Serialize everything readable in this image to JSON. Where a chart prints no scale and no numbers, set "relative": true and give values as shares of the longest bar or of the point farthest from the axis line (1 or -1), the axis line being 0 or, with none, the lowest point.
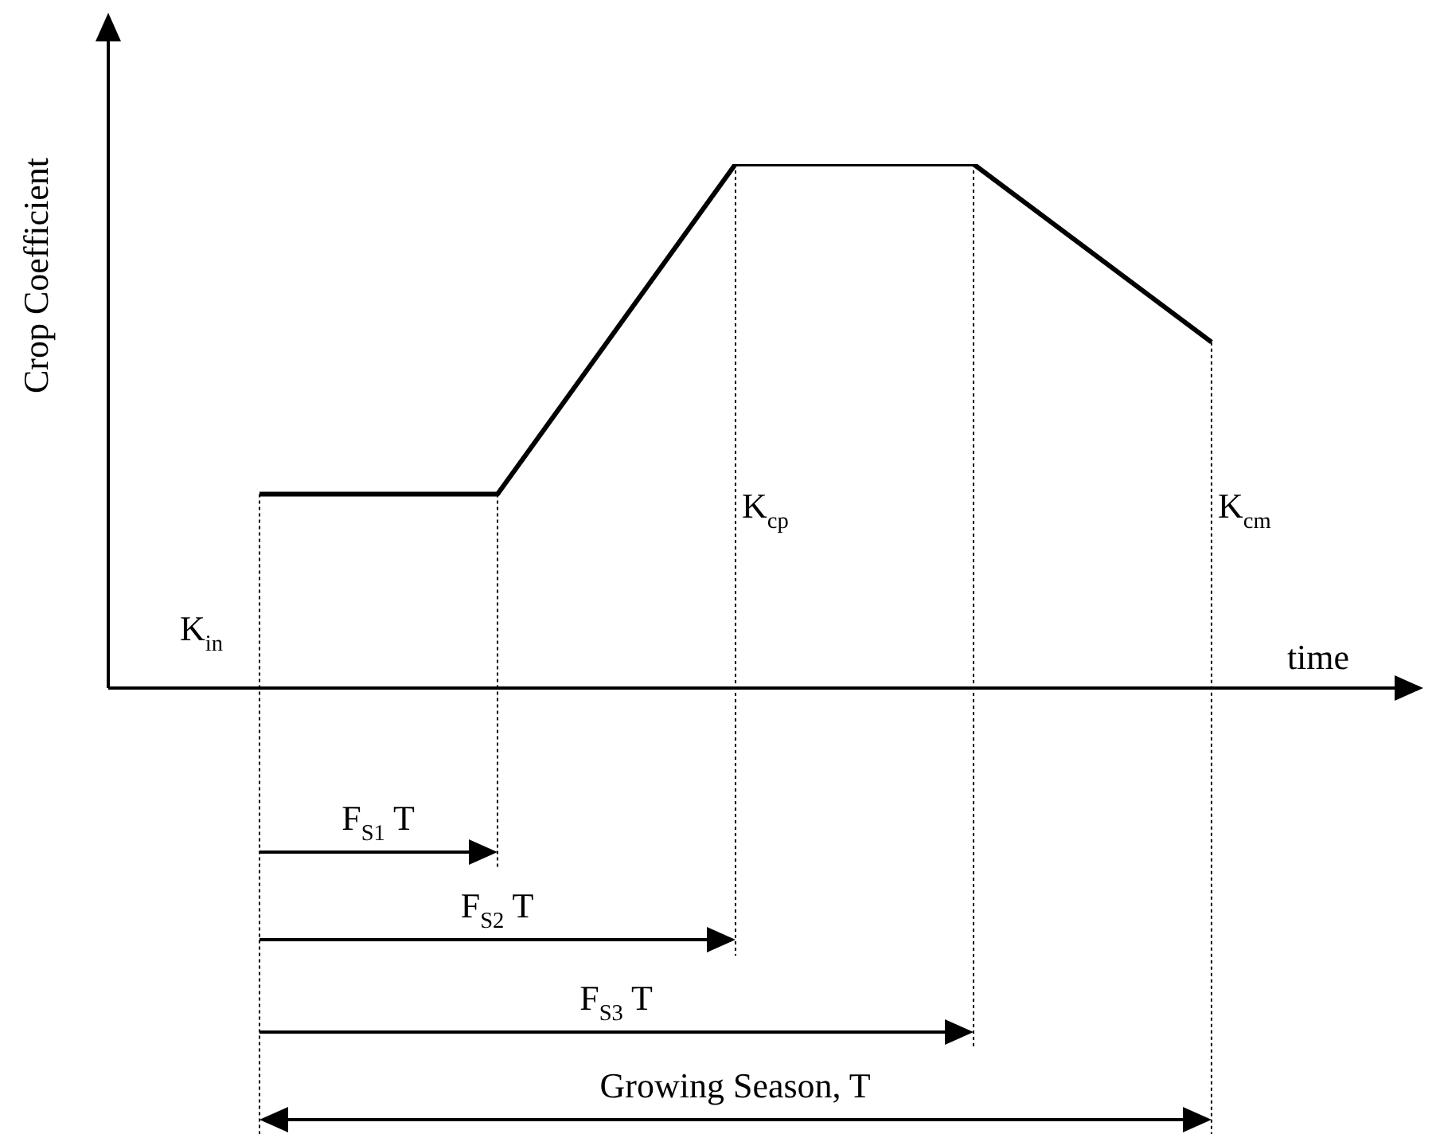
{
  "chart_data": {
    "type": "line",
    "xlabel": "time",
    "ylabel": "Crop Coefficient",
    "relative": true,
    "categories": [
      null,
      null,
      null,
      null,
      null
    ],
    "values": [
      0.37,
      0.37,
      1,
      1,
      0.66
    ],
    "color": "#000000",
    "marker": "none",
    "line_style": "solid",
    "grid": "x",
    "legend": false,
    "annotations": [
      "K$_{in}$",
      "K$_{cp}$",
      "K$_{cm}$",
      "F$_{S1}$ T",
      "F$_{S2}$ T",
      "F$_{S3}$ T",
      "Growing Season, T"
    ]
  }
}
